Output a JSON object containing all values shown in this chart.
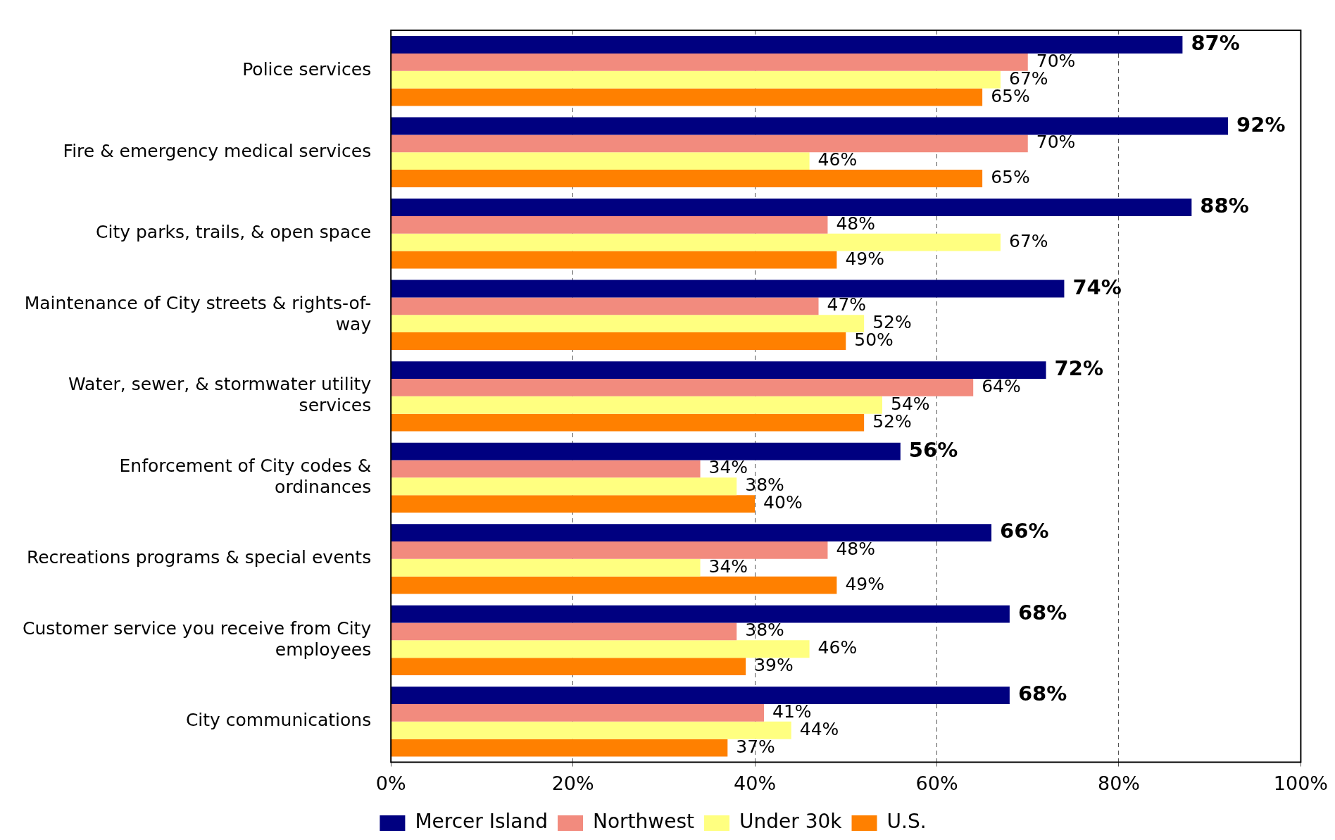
{
  "chart_data": {
    "type": "bar",
    "orientation": "horizontal",
    "categories": [
      "Police services",
      "Fire & emergency medical services",
      "City parks, trails, & open space",
      "Maintenance of City streets & rights-of- way",
      "Water, sewer, & stormwater utility services",
      "Enforcement of City codes & ordinances",
      "Recreations programs & special events",
      "Customer service you receive from City employees",
      "City communications"
    ],
    "series": [
      {
        "name": "Mercer Island",
        "color": "#000080",
        "values": [
          87,
          92,
          88,
          74,
          72,
          56,
          66,
          68,
          68
        ],
        "value_labels": [
          "87%",
          "92%",
          "88%",
          "74%",
          "72%",
          "56%",
          "66%",
          "68%",
          "68%"
        ]
      },
      {
        "name": "Northwest",
        "color": "#f28b7e",
        "values": [
          70,
          70,
          48,
          47,
          64,
          34,
          48,
          38,
          41
        ],
        "value_labels": [
          "70%",
          "70%",
          "48%",
          "47%",
          "64%",
          "34%",
          "48%",
          "38%",
          "41%"
        ]
      },
      {
        "name": "Under 30k",
        "color": "#ffff80",
        "values": [
          67,
          46,
          67,
          52,
          54,
          38,
          34,
          46,
          44
        ],
        "value_labels": [
          "67%",
          "46%",
          "67%",
          "52%",
          "54%",
          "38%",
          "34%",
          "46%",
          "44%"
        ]
      },
      {
        "name": "U.S.",
        "color": "#ff8000",
        "values": [
          65,
          65,
          49,
          50,
          52,
          40,
          49,
          39,
          37
        ],
        "value_labels": [
          "65%",
          "65%",
          "49%",
          "50%",
          "52%",
          "40%",
          "49%",
          "39%",
          "37%"
        ]
      }
    ],
    "xlim": [
      0,
      100
    ],
    "xticks": [
      {
        "value": 0,
        "label": "0%"
      },
      {
        "value": 20,
        "label": "20%"
      },
      {
        "value": 40,
        "label": "40%"
      },
      {
        "value": 60,
        "label": "60%"
      },
      {
        "value": 80,
        "label": "80%"
      },
      {
        "value": 100,
        "label": "100%"
      }
    ],
    "grid": "x",
    "legend": "bottom"
  }
}
